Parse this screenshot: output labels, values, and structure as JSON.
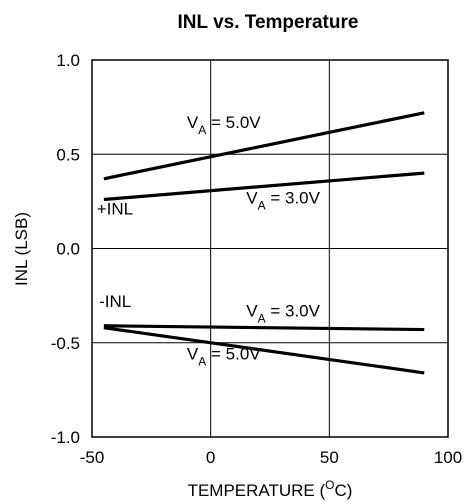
{
  "chart_data": {
    "type": "line",
    "title": "INL vs. Temperature",
    "xlabel_main": "TEMPERATURE (",
    "xlabel_unit": "O",
    "xlabel_tail": "C)",
    "ylabel": "INL (LSB)",
    "xlim": [
      -50,
      100
    ],
    "ylim": [
      -1.0,
      1.0
    ],
    "x_ticks": [
      -50,
      0,
      50,
      100
    ],
    "x_tick_labels": [
      "-50",
      "0",
      "50",
      "100"
    ],
    "y_ticks": [
      -1.0,
      -0.5,
      0.0,
      0.5,
      1.0
    ],
    "y_tick_labels": [
      "-1.0",
      "-0.5",
      "0.0",
      "0.5",
      "1.0"
    ],
    "grid": true,
    "series": [
      {
        "values": [
          [
            -45,
            0.37
          ],
          [
            90,
            0.72
          ]
        ]
      },
      {
        "values": [
          [
            -45,
            0.26
          ],
          [
            90,
            0.4
          ]
        ]
      },
      {
        "values": [
          [
            -45,
            -0.41
          ],
          [
            90,
            -0.43
          ]
        ]
      },
      {
        "values": [
          [
            -45,
            -0.42
          ],
          [
            90,
            -0.66
          ]
        ]
      }
    ],
    "annotations": [
      {
        "pre": "V",
        "sub": "A",
        "post": " = 5.0V",
        "x": -10,
        "y": 0.64
      },
      {
        "pre": "V",
        "sub": "A",
        "post": " = 3.0V",
        "x": 15,
        "y": 0.24
      },
      {
        "pre": "+INL",
        "sub": "",
        "post": "",
        "x": -48,
        "y": 0.18
      },
      {
        "pre": "-INL",
        "sub": "",
        "post": "",
        "x": -47,
        "y": -0.31
      },
      {
        "pre": "V",
        "sub": "A",
        "post": " = 3.0V",
        "x": 15,
        "y": -0.36
      },
      {
        "pre": "V",
        "sub": "A",
        "post": " = 5.0V",
        "x": -10,
        "y": -0.59
      }
    ]
  }
}
